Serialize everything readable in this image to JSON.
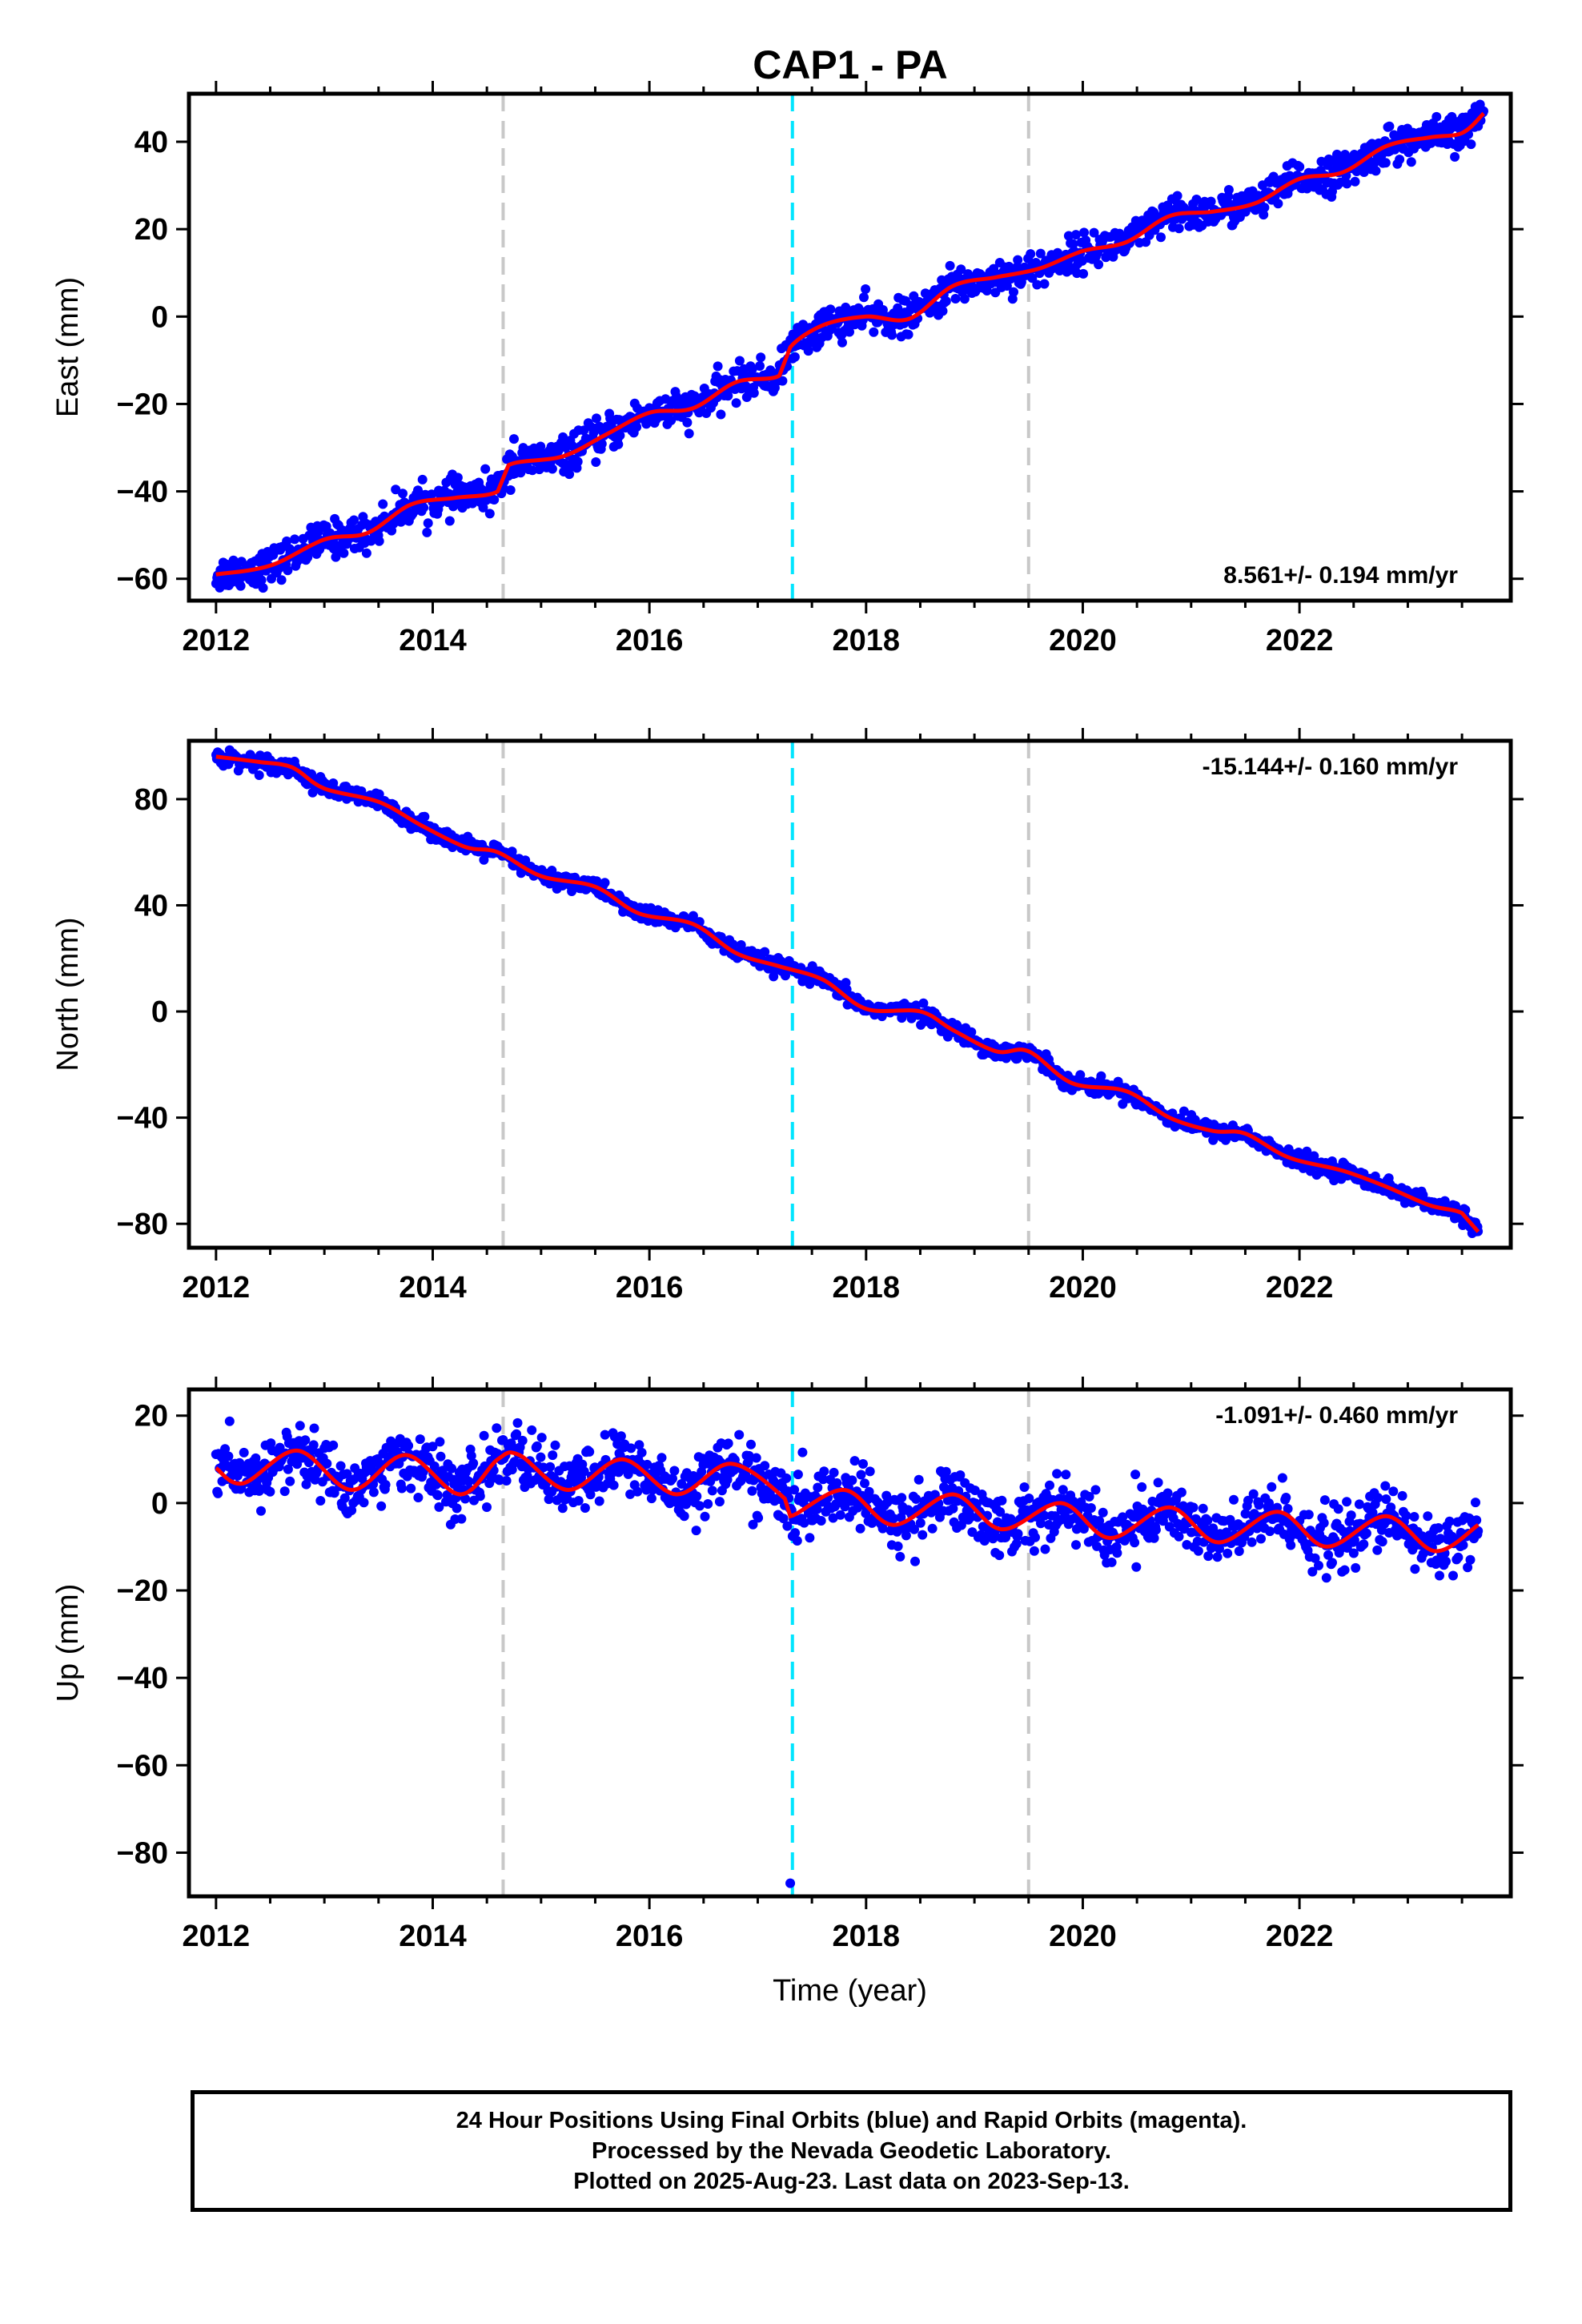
{
  "title": "CAP1 - PA",
  "chart_data": [
    {
      "type": "scatter",
      "panel": "east",
      "ylabel": "East (mm)",
      "xlabel": "",
      "xlim": [
        2011.75,
        2023.95
      ],
      "ylim": [
        -65,
        51
      ],
      "yticks": [
        -60,
        -40,
        -20,
        0,
        20,
        40
      ],
      "rate_label": "8.561+/- 0.194 mm/yr",
      "rate_position": "bottom-right",
      "series": [
        {
          "kind": "positions",
          "color": "#0000ff",
          "x": [
            2012.0,
            2012.5,
            2013.0,
            2013.4,
            2013.8,
            2014.2,
            2014.6,
            2014.7,
            2015.2,
            2015.6,
            2016.0,
            2016.4,
            2016.8,
            2017.2,
            2017.3,
            2017.6,
            2018.0,
            2018.4,
            2018.8,
            2019.2,
            2019.6,
            2020.0,
            2020.4,
            2020.8,
            2021.2,
            2021.6,
            2022.0,
            2022.4,
            2022.8,
            2023.2,
            2023.5,
            2023.7
          ],
          "y": [
            -59,
            -57,
            -51,
            -49.5,
            -43,
            -41.5,
            -40,
            -34,
            -32,
            -27,
            -22,
            -21,
            -15,
            -13.5,
            -7,
            -2,
            0,
            -0.5,
            7,
            9,
            11,
            15,
            17,
            23,
            24,
            26,
            31.5,
            33,
            39,
            41,
            42,
            46.5
          ],
          "spread": 2.0,
          "outliers": [
            [
              2014.75,
              -28
            ],
            [
              2017.3,
              -6
            ]
          ]
        },
        {
          "kind": "fit",
          "color": "#ff0000",
          "x": [
            2012.0,
            2012.5,
            2013.0,
            2013.4,
            2013.8,
            2014.2,
            2014.6,
            2014.7,
            2015.2,
            2015.6,
            2016.0,
            2016.4,
            2016.8,
            2017.2,
            2017.3,
            2017.6,
            2018.0,
            2018.4,
            2018.8,
            2019.2,
            2019.6,
            2020.0,
            2020.4,
            2020.8,
            2021.2,
            2021.6,
            2022.0,
            2022.4,
            2022.8,
            2023.2,
            2023.5,
            2023.7
          ],
          "y": [
            -59,
            -57,
            -51,
            -49.5,
            -43,
            -41.5,
            -40,
            -34,
            -32,
            -27,
            -22,
            -21,
            -15,
            -13.5,
            -7,
            -2,
            0,
            -0.5,
            7,
            9,
            11,
            15,
            17,
            23,
            24,
            26,
            31.5,
            33,
            39,
            41,
            42,
            46.5
          ]
        }
      ]
    },
    {
      "type": "scatter",
      "panel": "north",
      "ylabel": "North (mm)",
      "xlabel": "",
      "xlim": [
        2011.75,
        2023.95
      ],
      "ylim": [
        -89,
        102
      ],
      "yticks": [
        -80,
        -40,
        0,
        40,
        80
      ],
      "rate_label": "-15.144+/- 0.160 mm/yr",
      "rate_position": "top-right",
      "series": [
        {
          "kind": "positions",
          "color": "#0000ff",
          "x": [
            2012.0,
            2012.4,
            2012.7,
            2013.0,
            2013.5,
            2013.9,
            2014.3,
            2014.6,
            2015.0,
            2015.5,
            2015.9,
            2016.4,
            2016.8,
            2017.2,
            2017.6,
            2018.0,
            2018.5,
            2018.8,
            2019.2,
            2019.5,
            2019.9,
            2020.4,
            2020.8,
            2021.2,
            2021.5,
            2021.9,
            2022.4,
            2022.8,
            2023.2,
            2023.5,
            2023.65
          ],
          "y": [
            96,
            94,
            92,
            84,
            79,
            70,
            62,
            60,
            51,
            47,
            37,
            33,
            22,
            17,
            12,
            1,
            0,
            -7,
            -15,
            -15,
            -27,
            -30,
            -40,
            -45,
            -46,
            -55,
            -60,
            -66,
            -73,
            -76,
            -83
          ],
          "spread": 1.5,
          "outliers": []
        },
        {
          "kind": "fit",
          "color": "#ff0000",
          "x": [
            2012.0,
            2012.4,
            2012.7,
            2013.0,
            2013.5,
            2013.9,
            2014.3,
            2014.6,
            2015.0,
            2015.5,
            2015.9,
            2016.4,
            2016.8,
            2017.2,
            2017.6,
            2018.0,
            2018.5,
            2018.8,
            2019.2,
            2019.5,
            2019.9,
            2020.4,
            2020.8,
            2021.2,
            2021.5,
            2021.9,
            2022.4,
            2022.8,
            2023.2,
            2023.5,
            2023.65
          ],
          "y": [
            96,
            94,
            92,
            84,
            79,
            70,
            62,
            60,
            51,
            47,
            37,
            33,
            22,
            17,
            12,
            1,
            0,
            -7,
            -15,
            -15,
            -27,
            -30,
            -40,
            -45,
            -46,
            -55,
            -60,
            -66,
            -73,
            -76,
            -83
          ]
        }
      ]
    },
    {
      "type": "scatter",
      "panel": "up",
      "ylabel": "Up (mm)",
      "xlabel": "Time (year)",
      "xlim": [
        2011.75,
        2023.95
      ],
      "ylim": [
        -90,
        26
      ],
      "yticks": [
        -80,
        -60,
        -40,
        -20,
        0,
        20
      ],
      "rate_label": "-1.091+/- 0.460 mm/yr",
      "rate_position": "top-right",
      "series": [
        {
          "kind": "positions",
          "color": "#0000ff",
          "x": [
            2012.0,
            2012.25,
            2012.75,
            2013.25,
            2013.75,
            2014.25,
            2014.6,
            2014.8,
            2015.25,
            2015.75,
            2016.25,
            2016.75,
            2017.25,
            2017.3,
            2017.8,
            2018.25,
            2018.8,
            2019.25,
            2019.8,
            2020.25,
            2020.8,
            2021.25,
            2021.8,
            2022.25,
            2022.8,
            2023.25,
            2023.65
          ],
          "y": [
            8,
            4.5,
            12,
            3,
            11,
            2,
            10,
            11,
            3,
            10,
            2,
            9,
            1,
            -3,
            3,
            -5,
            2,
            -6,
            0,
            -8,
            -1,
            -9,
            -2,
            -10,
            -3,
            -11,
            -5
          ],
          "spread": 3.5,
          "outliers": [
            [
              2017.3,
              -87
            ]
          ]
        },
        {
          "kind": "fit",
          "color": "#ff0000",
          "x": [
            2012.0,
            2012.25,
            2012.75,
            2013.25,
            2013.75,
            2014.25,
            2014.6,
            2014.8,
            2015.25,
            2015.75,
            2016.25,
            2016.75,
            2017.25,
            2017.3,
            2017.8,
            2018.25,
            2018.8,
            2019.25,
            2019.8,
            2020.25,
            2020.8,
            2021.25,
            2021.8,
            2022.25,
            2022.8,
            2023.25,
            2023.65
          ],
          "y": [
            8,
            4.5,
            12,
            3,
            11,
            2,
            10,
            11,
            3,
            10,
            2,
            9,
            1,
            -3,
            3,
            -5,
            2,
            -6,
            0,
            -8,
            -1,
            -9,
            -2,
            -10,
            -3,
            -11,
            -5
          ]
        }
      ]
    }
  ],
  "xticks": [
    2012,
    2014,
    2016,
    2018,
    2020,
    2022
  ],
  "vlines": [
    {
      "x": 2014.65,
      "color": "#c8c8c8",
      "style": "dashed"
    },
    {
      "x": 2017.32,
      "color": "#00e5ff",
      "style": "dashed"
    },
    {
      "x": 2019.5,
      "color": "#c8c8c8",
      "style": "dashed"
    }
  ],
  "footer": {
    "line1": "24 Hour Positions Using Final Orbits (blue) and Rapid Orbits (magenta).",
    "line2": "Processed by the Nevada Geodetic Laboratory.",
    "line3": "Plotted on 2025-Aug-23. Last data on 2023-Sep-13."
  }
}
